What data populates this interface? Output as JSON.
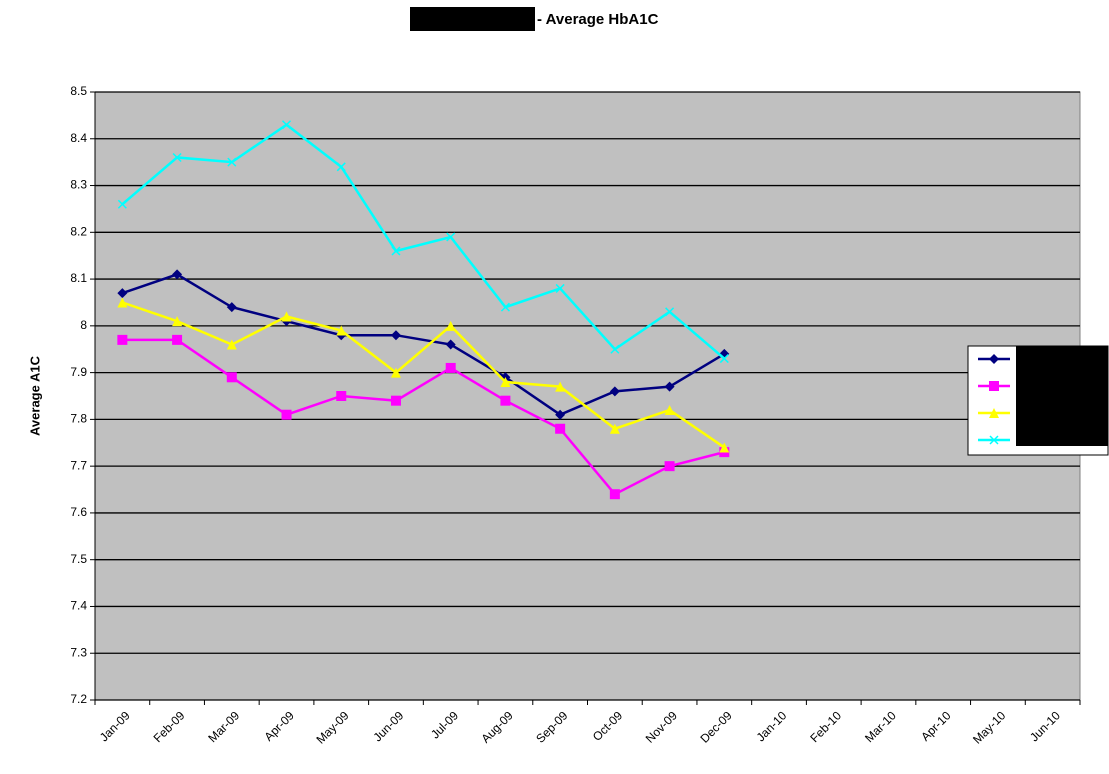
{
  "chart_data": {
    "type": "line",
    "title": "- Average HbA1C",
    "y_label": "Average A1C",
    "categories": [
      "Jan-09",
      "Feb-09",
      "Mar-09",
      "Apr-09",
      "May-09",
      "Jun-09",
      "Jul-09",
      "Aug-09",
      "Sep-09",
      "Oct-09",
      "Nov-09",
      "Dec-09",
      "Jan-10",
      "Feb-10",
      "Mar-10",
      "Apr-10",
      "May-10",
      "Jun-10"
    ],
    "series": [
      {
        "color": "#000080",
        "marker": "diamond",
        "values": [
          8.07,
          8.11,
          8.04,
          8.01,
          7.98,
          7.98,
          7.96,
          7.89,
          7.81,
          7.86,
          7.87,
          7.94,
          null,
          null,
          null,
          null,
          null,
          null
        ]
      },
      {
        "color": "#ff00ff",
        "marker": "square",
        "values": [
          7.97,
          7.97,
          7.89,
          7.81,
          7.85,
          7.84,
          7.91,
          7.84,
          7.78,
          7.64,
          7.7,
          7.73,
          null,
          null,
          null,
          null,
          null,
          null
        ]
      },
      {
        "color": "#ffff00",
        "marker": "triangle",
        "values": [
          8.05,
          8.01,
          7.96,
          8.02,
          7.99,
          7.9,
          8.0,
          7.88,
          7.87,
          7.78,
          7.82,
          7.74,
          null,
          null,
          null,
          null,
          null,
          null
        ]
      },
      {
        "color": "#00ffff",
        "marker": "x",
        "values": [
          8.26,
          8.36,
          8.35,
          8.43,
          8.34,
          8.16,
          8.19,
          8.04,
          8.08,
          7.95,
          8.03,
          7.93,
          null,
          null,
          null,
          null,
          null,
          null
        ]
      }
    ],
    "ylim": [
      7.2,
      8.5
    ],
    "yticks": [
      7.2,
      7.3,
      7.4,
      7.5,
      7.6,
      7.7,
      7.8,
      7.9,
      8,
      8.1,
      8.2,
      8.3,
      8.4,
      8.5
    ],
    "grid": true,
    "plot_background": "#c0c0c0",
    "legend": "right"
  }
}
